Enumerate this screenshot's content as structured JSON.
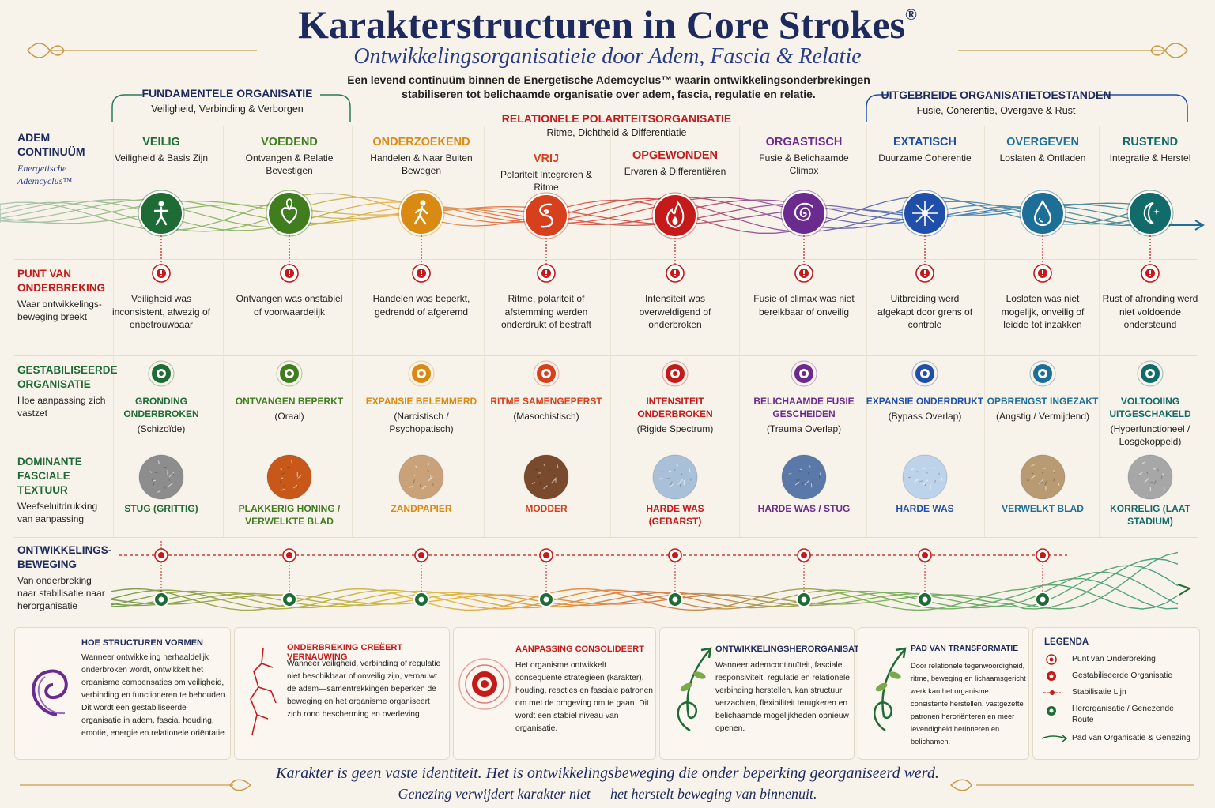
{
  "header": {
    "title": "Karakterstructuren in Core Strokes",
    "title_mark": "®",
    "subtitle": "Ontwikkelingsorganisatieie door Adem, Fascia & Relatie",
    "intro": "Een levend continuüm binnen de Energetische Ademcyclus™ waarin ontwikkelingsonderbrekingen stabiliseren tot belichaamde organisatie over adem, fascia, regulatie en relatie."
  },
  "groups": {
    "fundamental": {
      "title": "FUNDAMENTELE ORGANISATIE",
      "sub": "Veiligheid, Verbinding & Verborgen"
    },
    "relational": {
      "title": "RELATIONELE POLARITEITSORGANISATIE",
      "sub": "Ritme, Dichtheid & Differentiatie"
    },
    "extended": {
      "title": "UITGEBREIDE ORGANISATIETOESTANDEN",
      "sub": "Fusie, Coherentie, Overgave & Rust"
    }
  },
  "rows": {
    "breath": {
      "title1": "ADEM",
      "title2": "CONTINUÜM",
      "sub1": "Energetische",
      "sub2": "Ademcyclus™"
    },
    "break": {
      "title": "PUNT VAN ONDERBREKING",
      "desc": "Waar ontwikkelings-beweging breekt"
    },
    "stabilized": {
      "title": "GESTABILISEERDE ORGANISATIE",
      "desc": "Hoe aanpassing zich vastzet"
    },
    "fascia": {
      "title": "DOMINANTE FASCIALE TEXTUUR",
      "desc": "Weefseluitdrukking van aanpassing"
    },
    "movement": {
      "title": "ONTWIKKELINGS-BEWEGING",
      "desc": "Van onderbreking naar stabilisatie naar herorganisatie"
    }
  },
  "stages": [
    {
      "name": "VEILIG",
      "desc": "Veiligheid & Basis Zijn",
      "color": "#1f6b35",
      "icon": "person-icon",
      "break": "Veiligheid was inconsistent, afwezig of onbetrouwbaar",
      "org": "GRONDING ONDERBROKEN",
      "type": "(Schizoïde)",
      "texture": "STUG (GRITTIG)",
      "tex_color": "#8d8d8d"
    },
    {
      "name": "VOEDEND",
      "desc": "Ontvangen & Relatie Bevestigen",
      "color": "#3f7d1f",
      "icon": "heart-leaf-icon",
      "break": "Ontvangen was onstabiel of voorwaardelijk",
      "org": "ONTVANGEN BEPERKT",
      "type": "(Oraal)",
      "texture": "PLAKKERIG HONING / VERWELKTE BLAD",
      "tex_color": "#c8581a"
    },
    {
      "name": "ONDERZOEKEND",
      "desc": "Handelen & Naar Buiten Bewegen",
      "color": "#d98a12",
      "icon": "walking-icon",
      "break": "Handelen was beperkt, gedrendd of afgeremd",
      "org": "EXPANSIE BELEMMERD",
      "type": "(Narcistisch / Psychopatisch)",
      "texture": "ZANDPAPIER",
      "tex_color": "#c9a27a"
    },
    {
      "name": "VRIJ",
      "desc": "Polariteit Integreren & Ritme",
      "color": "#d6401d",
      "icon": "spiral-s-icon",
      "break": "Ritme, polariteit of afstemming werden onderdrukt of bestraft",
      "org": "RITME SAMENGEPERST",
      "type": "(Masochistisch)",
      "texture": "MODDER",
      "tex_color": "#7a4a2c"
    },
    {
      "name": "OPGEWONDEN",
      "desc": "Ervaren & Differentiëren",
      "color": "#c41a1a",
      "icon": "flame-icon",
      "break": "Intensiteit was overweldigend of onderbroken",
      "org": "INTENSITEIT ONDERBROKEN",
      "type": "(Rigide Spectrum)",
      "texture": "HARDE WAS (GEBARST)",
      "tex_color": "#a9c1d8"
    },
    {
      "name": "ORGASTISCH",
      "desc": "Fusie & Belichaamde Climax",
      "color": "#6a2a8e",
      "icon": "spiral-icon",
      "break": "Fusie of climax was niet bereikbaar of onveilig",
      "org": "BELICHAAMDE FUSIE GESCHEIDEN",
      "type": "(Trauma Overlap)",
      "texture": "HARDE WAS / STUG",
      "tex_color": "#5a78a8"
    },
    {
      "name": "EXTATISCH",
      "desc": "Duurzame Coherentie",
      "color": "#1f4fa8",
      "icon": "sparkle-icon",
      "break": "Uitbreiding werd afgekapt door grens of controle",
      "org": "EXPANSIE ONDERDRUKT",
      "type": "(Bypass Overlap)",
      "texture": "HARDE WAS",
      "tex_color": "#bcd3ea"
    },
    {
      "name": "OVERGEVEN",
      "desc": "Loslaten & Ontladen",
      "color": "#1d6f98",
      "icon": "drop-icon",
      "break": "Loslaten was niet mogelijk, onveilig of leidde tot inzakken",
      "org": "OPBRENGST INGEZAKT",
      "type": "(Angstig / Vermijdend)",
      "texture": "VERWELKT BLAD",
      "tex_color": "#b89a73"
    },
    {
      "name": "RUSTEND",
      "desc": "Integratie & Herstel",
      "color": "#116b6a",
      "icon": "moon-star-icon",
      "break": "Rust of afronding werd niet voldoende ondersteund",
      "org": "VOLTOOIING UITGESCHAKELD",
      "type": "(Hyperfunctioneel / Losgekoppeld)",
      "texture": "KORRELIG (LAAT STADIUM)",
      "tex_color": "#a7a7a7"
    }
  ],
  "cards": [
    {
      "title": "HOE STRUCTUREN VORMEN",
      "body": "Wanneer ontwikkeling herhaaldelijk onderbroken wordt, ontwikkelt het organisme compensaties om veiligheid, verbinding en functioneren te behouden. Dit wordt een gestabiliseerde organisatie in adem, fascia, houding, emotie, energie en relationele oriëntatie.",
      "icon": "swirl-icon"
    },
    {
      "title": "ONDERBREKING CREËERT VERNAUWING",
      "body": "Wanneer veiligheid, verbinding of regulatie niet beschikbaar of onveilig zijn, vernauwt de adem—samentrekkingen beperken de beweging en het organisme organiseert zich rond bescherming en overleving.",
      "icon": "crack-icon"
    },
    {
      "title": "AANPASSING CONSOLIDEERT",
      "body": "Het organisme ontwikkelt consequente strategieën (karakter), houding, reacties en fasciale patronen om met de omgeving om te gaan. Dit wordt een stabiel niveau van organisatie.",
      "icon": "target-icon"
    },
    {
      "title": "ONTWIKKELINGSHERORGANISATIE",
      "body": "Wanneer ademcontinuïteit, fasciale responsiviteit, regulatie en relationele verbinding herstellen, kan structuur verzachten, flexibiliteit terugkeren en belichaamde mogelijkheden opnieuw openen.",
      "icon": "sprout-arrow-icon"
    },
    {
      "title": "PAD VAN TRANSFORMATIE",
      "body": "Door relationele tegenwoordigheid, ritme, beweging en lichaamsgericht werk kan het organisme consistente herstellen, vastgezette patronen heroriënteren en meer levendigheid herinneren en belichamen.",
      "icon": "sprout-arrow-icon"
    }
  ],
  "legend": {
    "title": "LEGENDA",
    "items": [
      "Punt van Onderbreking",
      "Gestabiliseerde Organisatie",
      "Stabilisatie Lijn",
      "Herorganisatie / Genezende Route",
      "Pad van Organisatie & Genezing"
    ]
  },
  "footer": {
    "line1": "Karakter is geen vaste identiteit. Het is ontwikkelingsbeweging die onder beperking georganiseerd werd.",
    "line2": "Genezing verwijdert karakter niet — het herstelt beweging van binnenuit."
  }
}
